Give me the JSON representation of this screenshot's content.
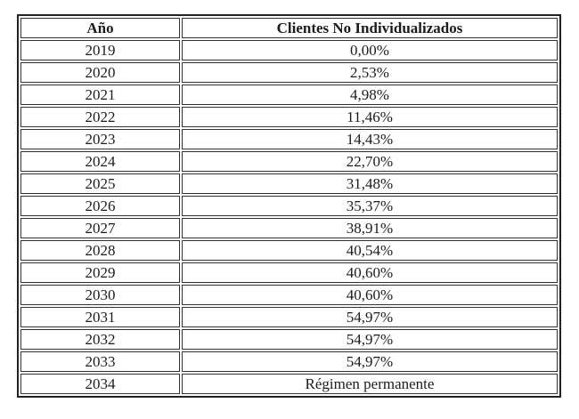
{
  "table": {
    "headers": [
      "Año",
      "Clientes No Individualizados"
    ],
    "rows": [
      [
        "2019",
        "0,00%"
      ],
      [
        "2020",
        "2,53%"
      ],
      [
        "2021",
        "4,98%"
      ],
      [
        "2022",
        "11,46%"
      ],
      [
        "2023",
        "14,43%"
      ],
      [
        "2024",
        "22,70%"
      ],
      [
        "2025",
        "31,48%"
      ],
      [
        "2026",
        "35,37%"
      ],
      [
        "2027",
        "38,91%"
      ],
      [
        "2028",
        "40,54%"
      ],
      [
        "2029",
        "40,60%"
      ],
      [
        "2030",
        "40,60%"
      ],
      [
        "2031",
        "54,97%"
      ],
      [
        "2032",
        "54,97%"
      ],
      [
        "2033",
        "54,97%"
      ],
      [
        "2034",
        "Régimen permanente"
      ]
    ],
    "colors": {
      "border_outer": "#222222",
      "border_cell": "#333333",
      "text": "#1c1c1c",
      "background": "#ffffff"
    }
  }
}
